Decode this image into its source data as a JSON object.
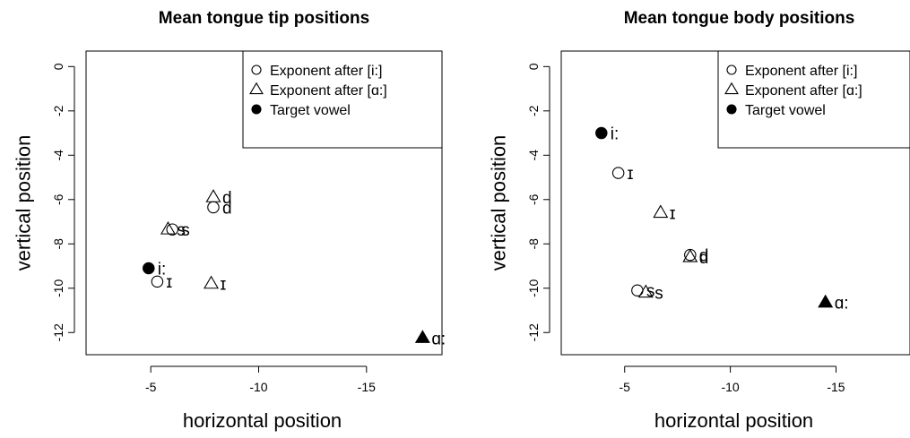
{
  "chart_data": [
    {
      "type": "scatter",
      "title": "Mean tongue tip positions",
      "xlabel": "horizontal position",
      "ylabel": "vertical position",
      "xlim": [
        -2,
        -18.5
      ],
      "ylim": [
        -13,
        0.7
      ],
      "x_ticks": [
        -5,
        -10,
        -15
      ],
      "y_ticks": [
        0,
        -2,
        -4,
        -6,
        -8,
        -10,
        -12
      ],
      "grid": false,
      "legend_position": "top-right",
      "legend": [
        {
          "marker": "open-circle",
          "label": "Exponent after [i:]"
        },
        {
          "marker": "open-triangle",
          "label": "Exponent after [ɑ:]"
        },
        {
          "marker": "filled-circle",
          "label": "Target vowel"
        }
      ],
      "series": [
        {
          "name": "Exponent after [i:]",
          "marker": "open-circle",
          "points": [
            {
              "x": -6.0,
              "y": -7.35,
              "label": "s"
            },
            {
              "x": -7.9,
              "y": -6.35,
              "label": "d"
            },
            {
              "x": -5.3,
              "y": -9.7,
              "label": "ɪ"
            }
          ]
        },
        {
          "name": "Exponent after [ɑ:]",
          "marker": "open-triangle",
          "points": [
            {
              "x": -5.8,
              "y": -7.35,
              "label": "s"
            },
            {
              "x": -7.9,
              "y": -5.9,
              "label": "d"
            },
            {
              "x": -7.8,
              "y": -9.8,
              "label": "ɪ"
            }
          ]
        },
        {
          "name": "Target vowel",
          "marker": "filled-circle",
          "points": [
            {
              "x": -4.9,
              "y": -9.1,
              "label": "i:"
            }
          ]
        },
        {
          "name": "Target vowel",
          "marker": "filled-triangle",
          "points": [
            {
              "x": -17.6,
              "y": -12.25,
              "label": "ɑ:"
            }
          ]
        }
      ]
    },
    {
      "type": "scatter",
      "title": "Mean tongue body positions",
      "xlabel": "horizontal position",
      "ylabel": "vertical position",
      "xlim": [
        -2,
        -18.5
      ],
      "ylim": [
        -13,
        0.7
      ],
      "x_ticks": [
        -5,
        -10,
        -15
      ],
      "y_ticks": [
        0,
        -2,
        -4,
        -6,
        -8,
        -10,
        -12
      ],
      "grid": false,
      "legend_position": "top-right",
      "legend": [
        {
          "marker": "open-circle",
          "label": "Exponent after [i:]"
        },
        {
          "marker": "open-triangle",
          "label": "Exponent after [ɑ:]"
        },
        {
          "marker": "filled-circle",
          "label": "Target vowel"
        }
      ],
      "series": [
        {
          "name": "Exponent after [i:]",
          "marker": "open-circle",
          "points": [
            {
              "x": -4.7,
              "y": -4.8,
              "label": "ɪ"
            },
            {
              "x": -5.6,
              "y": -10.1,
              "label": "s"
            },
            {
              "x": -8.1,
              "y": -8.5,
              "label": "d"
            }
          ]
        },
        {
          "name": "Exponent after [ɑ:]",
          "marker": "open-triangle",
          "points": [
            {
              "x": -6.7,
              "y": -6.6,
              "label": "ɪ"
            },
            {
              "x": -6.0,
              "y": -10.2,
              "label": "s"
            },
            {
              "x": -8.1,
              "y": -8.6,
              "label": "d"
            }
          ]
        },
        {
          "name": "Target vowel",
          "marker": "filled-circle",
          "points": [
            {
              "x": -3.9,
              "y": -3.0,
              "label": "i:"
            }
          ]
        },
        {
          "name": "Target vowel",
          "marker": "filled-triangle",
          "points": [
            {
              "x": -14.5,
              "y": -10.65,
              "label": "ɑ:"
            }
          ]
        }
      ]
    }
  ]
}
